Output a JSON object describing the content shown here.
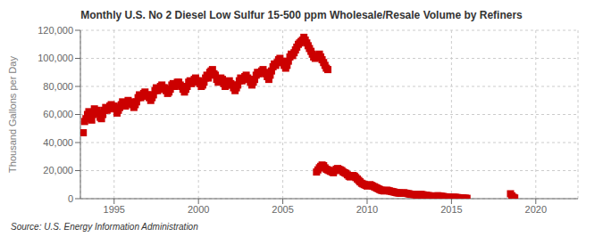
{
  "chart_data": {
    "type": "scatter",
    "title": "Monthly U.S. No 2 Diesel Low Sulfur 15-500 ppm Wholesale/Resale Volume by Refiners",
    "y_label": "Thousand Gallons per Day",
    "annotation": "Source: U.S. Energy Information Administration",
    "xlim": [
      1993.0,
      2022.5
    ],
    "ylim": [
      0,
      120000
    ],
    "xticks": [
      1995,
      2000,
      2005,
      2010,
      2015,
      2020
    ],
    "yticks": [
      0,
      {
        "value": 20000,
        "label": "20,000"
      },
      {
        "value": 40000,
        "label": "40,000"
      },
      {
        "value": 60000,
        "label": "60,000"
      },
      {
        "value": 80000,
        "label": "80,000"
      },
      {
        "value": 100000,
        "label": "100,000"
      },
      {
        "value": 120000,
        "label": "120,000"
      }
    ],
    "grid": true,
    "series": [
      {
        "color": "#cc0000",
        "marker": "square",
        "x": [
          1993.17,
          1993.25,
          1993.33,
          1993.42,
          1993.5,
          1993.58,
          1993.67,
          1993.75,
          1993.83,
          1993.92,
          1994.0,
          1994.08,
          1994.17,
          1994.25,
          1994.33,
          1994.42,
          1994.5,
          1994.58,
          1994.67,
          1994.75,
          1994.83,
          1994.92,
          1995.0,
          1995.08,
          1995.17,
          1995.25,
          1995.33,
          1995.42,
          1995.5,
          1995.58,
          1995.67,
          1995.75,
          1995.83,
          1995.92,
          1996.0,
          1996.08,
          1996.17,
          1996.25,
          1996.33,
          1996.42,
          1996.5,
          1996.58,
          1996.67,
          1996.75,
          1996.83,
          1996.92,
          1997.0,
          1997.08,
          1997.17,
          1997.25,
          1997.33,
          1997.42,
          1997.5,
          1997.58,
          1997.67,
          1997.75,
          1997.83,
          1997.92,
          1998.0,
          1998.08,
          1998.17,
          1998.25,
          1998.33,
          1998.42,
          1998.5,
          1998.58,
          1998.67,
          1998.75,
          1998.83,
          1998.92,
          1999.0,
          1999.08,
          1999.17,
          1999.25,
          1999.33,
          1999.42,
          1999.5,
          1999.58,
          1999.67,
          1999.75,
          1999.83,
          1999.92,
          2000.0,
          2000.08,
          2000.17,
          2000.25,
          2000.33,
          2000.42,
          2000.5,
          2000.58,
          2000.67,
          2000.75,
          2000.83,
          2000.92,
          2001.0,
          2001.08,
          2001.17,
          2001.25,
          2001.33,
          2001.42,
          2001.5,
          2001.58,
          2001.67,
          2001.75,
          2001.83,
          2001.92,
          2002.0,
          2002.08,
          2002.17,
          2002.25,
          2002.33,
          2002.42,
          2002.5,
          2002.58,
          2002.67,
          2002.75,
          2002.83,
          2002.92,
          2003.0,
          2003.08,
          2003.17,
          2003.25,
          2003.33,
          2003.42,
          2003.5,
          2003.58,
          2003.67,
          2003.75,
          2003.83,
          2003.92,
          2004.0,
          2004.08,
          2004.17,
          2004.25,
          2004.33,
          2004.42,
          2004.5,
          2004.58,
          2004.67,
          2004.75,
          2004.83,
          2004.92,
          2005.0,
          2005.08,
          2005.17,
          2005.25,
          2005.33,
          2005.42,
          2005.5,
          2005.58,
          2005.67,
          2005.75,
          2005.83,
          2005.92,
          2006.0,
          2006.08,
          2006.17,
          2006.25,
          2006.33,
          2006.42,
          2006.5,
          2006.58,
          2006.67,
          2006.75,
          2006.83,
          2006.92,
          2007.0,
          2007.08,
          2007.17,
          2007.25,
          2007.33,
          2007.42,
          2007.5,
          2007.58,
          2007.67
        ],
        "values": [
          47000,
          55000,
          57000,
          60000,
          62000,
          58000,
          56000,
          60000,
          64000,
          62000,
          63000,
          61000,
          58000,
          57000,
          60000,
          63000,
          65000,
          63000,
          64000,
          66000,
          67000,
          65000,
          66000,
          64000,
          61000,
          63000,
          65000,
          67000,
          69000,
          67000,
          66000,
          68000,
          70000,
          68000,
          69000,
          67000,
          65000,
          67000,
          69000,
          72000,
          74000,
          72000,
          73000,
          75000,
          76000,
          74000,
          74000,
          72000,
          70000,
          72000,
          74000,
          77000,
          79000,
          77000,
          78000,
          80000,
          81000,
          79000,
          79000,
          77000,
          75000,
          76000,
          78000,
          81000,
          82000,
          80000,
          81000,
          83000,
          83000,
          81000,
          80000,
          78000,
          76000,
          78000,
          80000,
          83000,
          84000,
          82000,
          83000,
          85000,
          86000,
          84000,
          84000,
          82000,
          80000,
          81000,
          83000,
          86000,
          88000,
          86000,
          90000,
          91000,
          92000,
          89000,
          88000,
          85000,
          83000,
          84000,
          86000,
          85000,
          82000,
          80000,
          81000,
          83000,
          84000,
          82000,
          81000,
          79000,
          77000,
          79000,
          81000,
          84000,
          86000,
          84000,
          85000,
          87000,
          88000,
          86000,
          85000,
          83000,
          81000,
          83000,
          85000,
          88000,
          90000,
          89000,
          90000,
          91000,
          92000,
          90000,
          89000,
          87000,
          85000,
          88000,
          91000,
          94000,
          96000,
          95000,
          97000,
          99000,
          100000,
          98000,
          97000,
          95000,
          93000,
          95000,
          98000,
          101000,
          103000,
          102000,
          104000,
          106000,
          108000,
          110000,
          111000,
          112000,
          113000,
          115000,
          113000,
          111000,
          109000,
          107000,
          105000,
          103000,
          101000,
          100000,
          101000,
          102000,
          103000,
          101000,
          99000,
          97000,
          95000,
          93000,
          92000
        ]
      },
      {
        "color": "#cc0000",
        "marker": "square",
        "x": [
          2007.0,
          2007.08,
          2007.17,
          2007.25,
          2007.33,
          2007.42,
          2007.5,
          2007.58,
          2007.67,
          2007.75,
          2007.83,
          2007.92,
          2008.0,
          2008.08,
          2008.17,
          2008.25,
          2008.33,
          2008.42,
          2008.5,
          2008.58,
          2008.67,
          2008.75,
          2008.83,
          2008.92,
          2009.0,
          2009.08,
          2009.17,
          2009.25,
          2009.33,
          2009.42,
          2009.5,
          2009.58,
          2009.67,
          2009.75,
          2009.83,
          2009.92,
          2010.0,
          2010.08,
          2010.17,
          2010.25,
          2010.33,
          2010.42,
          2010.5,
          2010.58,
          2010.67,
          2010.75,
          2010.83,
          2010.92,
          2011.0,
          2011.08,
          2011.17,
          2011.25,
          2011.33,
          2011.42,
          2011.5,
          2011.58,
          2011.67,
          2011.75,
          2011.83,
          2011.92,
          2012.0,
          2012.08,
          2012.17,
          2012.25,
          2012.33,
          2012.42,
          2012.5,
          2012.58,
          2012.67,
          2012.75,
          2012.83,
          2012.92,
          2013.0,
          2013.08,
          2013.17,
          2013.25,
          2013.33,
          2013.42,
          2013.5,
          2013.58,
          2013.67,
          2013.75,
          2013.83,
          2013.92,
          2014.0,
          2014.08,
          2014.17,
          2014.25,
          2014.33,
          2014.42,
          2014.5,
          2014.58,
          2014.67,
          2014.75,
          2014.83,
          2014.92,
          2015.0,
          2015.08,
          2015.17,
          2015.25,
          2015.33,
          2015.42,
          2015.5,
          2015.58,
          2015.67,
          2015.75,
          2015.83,
          2015.92,
          2018.5,
          2018.58,
          2018.67,
          2018.75
        ],
        "values": [
          19000,
          20500,
          22000,
          23000,
          24000,
          23500,
          22000,
          21000,
          20500,
          20000,
          19500,
          19000,
          18500,
          20000,
          21000,
          21500,
          21000,
          20500,
          20000,
          19000,
          18500,
          18000,
          17000,
          16000,
          15500,
          16000,
          16500,
          16000,
          15000,
          14000,
          13000,
          12000,
          11000,
          10500,
          10000,
          9500,
          9000,
          9500,
          10000,
          9500,
          9000,
          8500,
          8000,
          7500,
          7000,
          6500,
          6000,
          5800,
          5500,
          5800,
          6000,
          5800,
          5500,
          5200,
          5000,
          4800,
          4500,
          4300,
          4100,
          4000,
          3800,
          4000,
          4200,
          4000,
          3800,
          3600,
          3400,
          3200,
          3100,
          3000,
          2900,
          2800,
          2700,
          2900,
          3000,
          2900,
          2700,
          2500,
          2400,
          2200,
          2100,
          2000,
          1900,
          1800,
          1700,
          1900,
          2100,
          2000,
          1900,
          1700,
          1500,
          1400,
          1200,
          1100,
          1000,
          900,
          800,
          900,
          1000,
          900,
          800,
          700,
          600,
          500,
          400,
          350,
          300,
          250,
          3500,
          2000,
          1000,
          500
        ]
      }
    ]
  }
}
